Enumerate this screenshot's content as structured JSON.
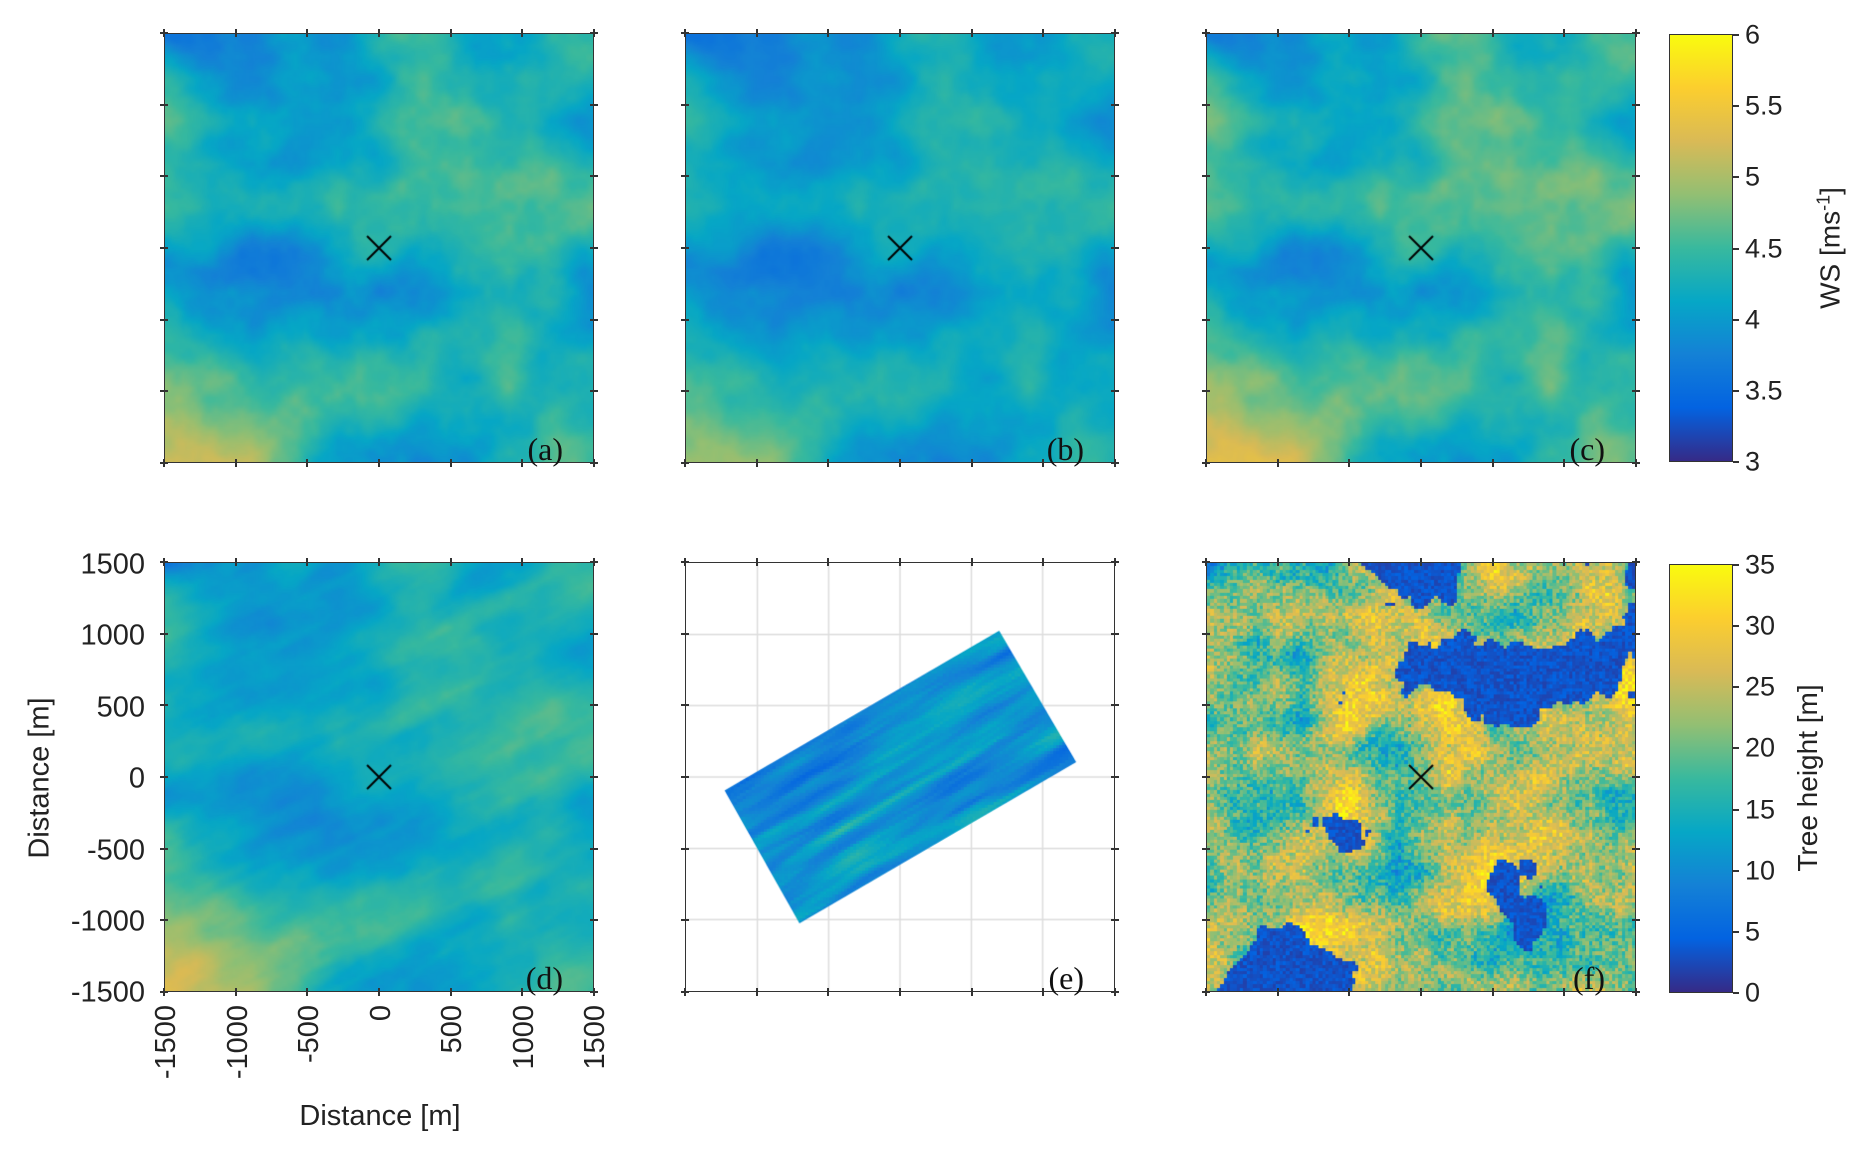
{
  "chart_data": [
    {
      "type": "heatmap",
      "panel_label": "(a)",
      "colorbar": "ws",
      "marker": {
        "x": 0,
        "y": 0,
        "symbol": "x"
      }
    },
    {
      "type": "heatmap",
      "panel_label": "(b)",
      "colorbar": "ws",
      "marker": {
        "x": 0,
        "y": 0,
        "symbol": "x"
      }
    },
    {
      "type": "heatmap",
      "panel_label": "(c)",
      "colorbar": "ws",
      "marker": {
        "x": 0,
        "y": 0,
        "symbol": "x"
      }
    },
    {
      "type": "heatmap",
      "panel_label": "(d)",
      "colorbar": "ws",
      "marker": {
        "x": 0,
        "y": 0,
        "symbol": "x"
      },
      "xlabel": "Distance [m]",
      "ylabel": "Distance [m]"
    },
    {
      "type": "heatmap",
      "panel_label": "(e)",
      "colorbar": "ws",
      "grid": true,
      "data_region_corners": [
        [
          -1230,
          -95
        ],
        [
          695,
          1025
        ],
        [
          1235,
          105
        ],
        [
          -705,
          -1025
        ]
      ]
    },
    {
      "type": "heatmap",
      "panel_label": "(f)",
      "colorbar": "tree",
      "marker": {
        "x": 0,
        "y": 0,
        "symbol": "x"
      }
    }
  ],
  "axes": {
    "xlim": [
      -1500,
      1500
    ],
    "ylim": [
      -1500,
      1500
    ],
    "xticks": [
      "-1500",
      "-1000",
      "-500",
      "0",
      "500",
      "1000",
      "1500"
    ],
    "yticks": [
      "1500",
      "1000",
      "500",
      "0",
      "-500",
      "-1000",
      "-1500"
    ],
    "xlabel": "Distance [m]",
    "ylabel": "Distance [m]"
  },
  "colorbars": {
    "ws": {
      "label": "WS [ms",
      "label_sup": "-1",
      "label_end": "]",
      "range": [
        3,
        6
      ],
      "ticks": [
        "6",
        "5.5",
        "5",
        "4.5",
        "4",
        "3.5",
        "3"
      ]
    },
    "tree": {
      "label": "Tree height [m]",
      "range": [
        0,
        35
      ],
      "ticks": [
        "35",
        "30",
        "25",
        "20",
        "15",
        "10",
        "5",
        "0"
      ]
    }
  },
  "colormap": "parula"
}
